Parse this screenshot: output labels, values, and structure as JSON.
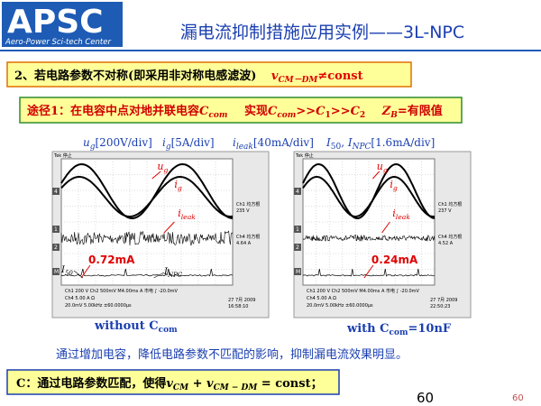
{
  "logo": {
    "name": "APSC",
    "subtitle": "Aero-Power Sci-tech Center"
  },
  "title": "漏电流抑制措施应用实例——3L-NPC",
  "condition": [
    "2、若电路参数不对称(即采用非对称电感滤波)",
    "v",
    "CM－DM",
    "≠const"
  ],
  "method": [
    "途径1：在电容中点对地并联电容",
    "C",
    "com",
    "实现",
    "C",
    "com",
    ">>",
    "C",
    "1",
    ">>",
    "C",
    "2",
    "Z",
    "B",
    "=有限值"
  ],
  "scales": [
    [
      "u",
      "g",
      "[200V/div]"
    ],
    [
      "i",
      "g",
      "[5A/div]"
    ],
    [
      "i",
      "leak",
      "[40mA/div]"
    ],
    [
      "I",
      "50",
      ", ",
      "I",
      "NPC",
      "[1.6mA/div]"
    ]
  ],
  "scopes": [
    {
      "status": "Tek 停止",
      "channels": [
        "4",
        "1",
        "2",
        "M"
      ],
      "readouts": [
        "Ch1 均方根",
        "235 V",
        "Ch4 均方根",
        "4.64 A"
      ],
      "footer": [
        "Ch1   200 V   Ch2   500mV   M4.00ms  A 市电 ∫ -20.0mV",
        "Ch4   5.00 A Ω",
        "20.0mV     5.00kHz   ±60.0000μs"
      ],
      "date": [
        "27 7月 2009",
        "16:58:10"
      ],
      "ug": [
        "u",
        "g"
      ],
      "ig": [
        "i",
        "g"
      ],
      "ileak": [
        "i",
        "leak"
      ],
      "current": "0.72mA",
      "i50": [
        "I",
        "50"
      ],
      "inpc": [
        "I",
        "NPC"
      ],
      "caption": [
        "without C",
        "com"
      ]
    },
    {
      "status": "Tek 停止",
      "channels": [
        "4",
        "1",
        "2",
        "M"
      ],
      "readouts": [
        "Ch1 均方根",
        "237 V",
        "Ch4 均方根",
        "4.52 A"
      ],
      "footer": [
        "Ch1   200 V   Ch2   500mV   M4.00ms  A 市电 ∫ -20.0mV",
        "Ch4   5.00 A Ω",
        "20.0mV     5.00kHz   ±60.0000μs"
      ],
      "date": [
        "27 7月 2009",
        "22:50:23"
      ],
      "ug": [
        "u",
        "g"
      ],
      "ig": [
        "i",
        "g"
      ],
      "ileak": [
        "i",
        "leak"
      ],
      "current": "0.24mA",
      "caption": [
        "with C",
        "com",
        "=10nF"
      ]
    }
  ],
  "conclusion": "通过增加电容，降低电路参数不匹配的影响，抑制漏电流效果明显。",
  "summary": [
    "C：通过电路参数匹配，使得",
    "v",
    "CM",
    " + ",
    "v",
    "CM − DM",
    " = const；"
  ],
  "page": "60",
  "corner_page": "60"
}
